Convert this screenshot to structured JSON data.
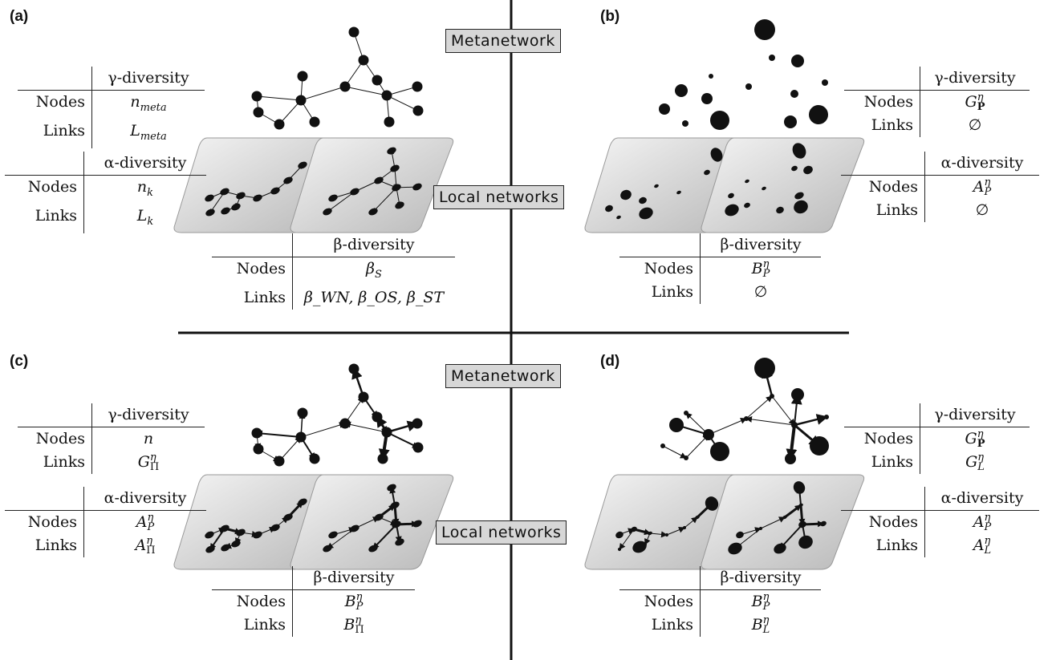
{
  "panels": {
    "a": {
      "label": "(a)"
    },
    "b": {
      "label": "(b)"
    },
    "c": {
      "label": "(c)"
    },
    "d": {
      "label": "(d)"
    }
  },
  "box_labels": {
    "metanetwork": "Metanetwork",
    "local_networks": "Local networks"
  },
  "row_labels": {
    "nodes": "Nodes",
    "links": "Links"
  },
  "headers": {
    "gamma": "γ-diversity",
    "alpha": "α-diversity",
    "beta": "β-diversity"
  },
  "values": {
    "a_gamma_nodes": "n",
    "a_gamma_nodes_sub": "meta",
    "a_gamma_links": "L",
    "a_gamma_links_sub": "meta",
    "a_alpha_nodes": "n",
    "a_alpha_nodes_sub": "k",
    "a_alpha_links": "L",
    "a_alpha_links_sub": "k",
    "a_beta_nodes": "β",
    "a_beta_nodes_sub": "S",
    "a_beta_links": "β_WN, β_OS, β_ST",
    "b_gamma_nodes": "G",
    "b_gamma_nodes_sup": "η",
    "b_gamma_nodes_sub": "P",
    "b_gamma_links": "∅",
    "b_alpha_nodes": "A",
    "b_alpha_nodes_sup": "η",
    "b_alpha_nodes_sub": "P",
    "b_alpha_links": "∅",
    "b_beta_nodes": "B",
    "b_beta_nodes_sup": "η",
    "b_beta_nodes_sub": "P",
    "b_beta_links": "∅",
    "c_gamma_nodes": "n",
    "c_gamma_links": "G",
    "c_gamma_links_sup": "η",
    "c_gamma_links_sub": "Π",
    "c_alpha_nodes": "A",
    "c_alpha_nodes_sup": "η",
    "c_alpha_nodes_sub": "P",
    "c_alpha_links": "A",
    "c_alpha_links_sup": "η",
    "c_alpha_links_sub": "Π",
    "c_beta_nodes": "B",
    "c_beta_nodes_sup": "η",
    "c_beta_nodes_sub": "P",
    "c_beta_links": "B",
    "c_beta_links_sup": "η",
    "c_beta_links_sub": "Π",
    "d_gamma_nodes": "G",
    "d_gamma_nodes_sup": "η",
    "d_gamma_nodes_sub": "P",
    "d_gamma_links": "G",
    "d_gamma_links_sup": "η",
    "d_gamma_links_sub": "L",
    "d_alpha_nodes": "A",
    "d_alpha_nodes_sup": "η",
    "d_alpha_nodes_sub": "P",
    "d_alpha_links": "A",
    "d_alpha_links_sup": "η",
    "d_alpha_links_sub": "L",
    "d_beta_nodes": "B",
    "d_beta_nodes_sup": "η",
    "d_beta_nodes_sub": "P",
    "d_beta_links": "B",
    "d_beta_links_sup": "η",
    "d_beta_links_sub": "L"
  }
}
